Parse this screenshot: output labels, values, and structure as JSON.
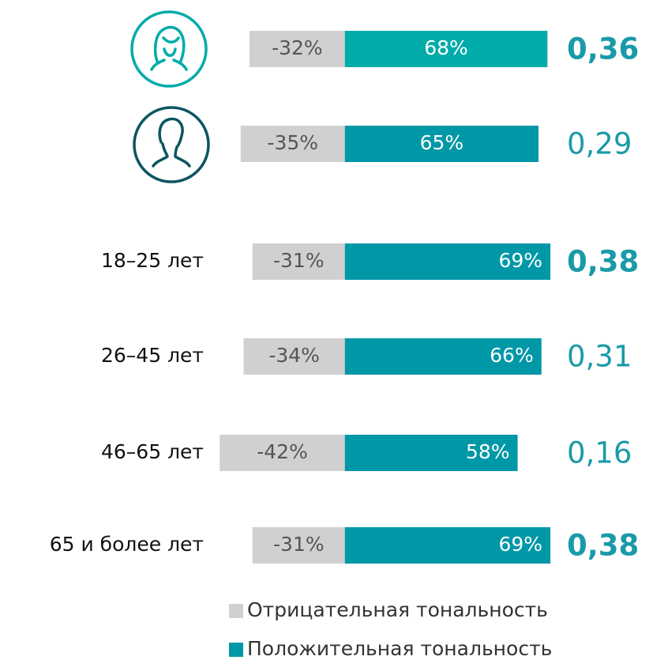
{
  "chart_data": {
    "type": "diverging_bar",
    "categories": [
      null,
      null,
      "18–25 лет",
      "26–45 лет",
      "46–65 лет",
      "65 и более лет"
    ],
    "series": [
      {
        "name": "Отрицательная тональность",
        "color": "#d0d0d0",
        "values": [
          -32,
          -35,
          -31,
          -34,
          -42,
          -31
        ],
        "value_labels": [
          "-32%",
          "-35%",
          "-31%",
          "-34%",
          "-42%",
          "-31%"
        ]
      },
      {
        "name": "Положительная тональность",
        "color": "#0097a7",
        "colors": [
          "#00aba9",
          "#0097a7",
          "#0097a7",
          "#0097a7",
          "#0097a7",
          "#0097a7"
        ],
        "values": [
          68,
          65,
          69,
          66,
          58,
          69
        ],
        "value_labels": [
          "68%",
          "65%",
          "69%",
          "66%",
          "58%",
          "69%"
        ]
      }
    ],
    "scores": {
      "values": [
        0.36,
        0.29,
        0.38,
        0.31,
        0.16,
        0.38
      ],
      "value_labels": [
        "0,36",
        "0,29",
        "0,38",
        "0,31",
        "0,16",
        "0,38"
      ],
      "bold": [
        true,
        false,
        true,
        false,
        false,
        true
      ],
      "color": "#1a9aa8"
    },
    "xlim": [
      -45,
      100
    ]
  }
}
